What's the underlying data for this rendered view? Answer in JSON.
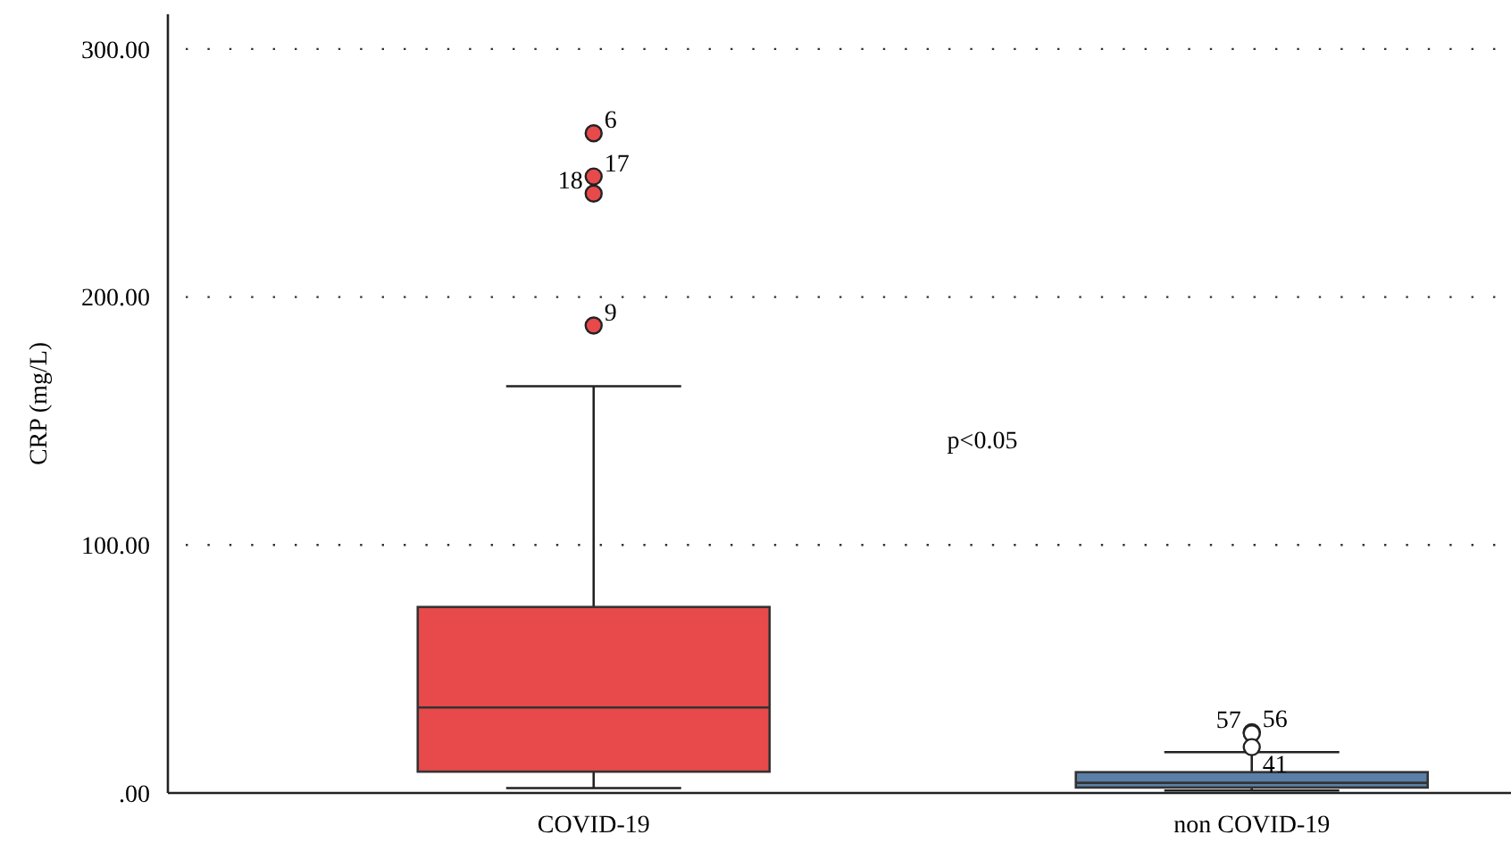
{
  "chart_data": {
    "type": "box",
    "ylabel": "CRP (mg/L)",
    "categories": [
      "COVID-19",
      "non COVID-19"
    ],
    "series": [
      {
        "colors": [
          "#e8494b",
          "#5b7fa6"
        ],
        "boxes": [
          {
            "low": 2,
            "q1": 8.6,
            "median": 34.5,
            "q3": 75,
            "high": 164,
            "outliers": [
              266,
              248.6,
              241.7,
              188.5
            ]
          },
          {
            "low": 1,
            "q1": 2.2,
            "median": 4.1,
            "q3": 8.4,
            "high": 16.5,
            "outliers": [
              24.5,
              24,
              18.5
            ]
          }
        ]
      }
    ],
    "ylim": [
      0,
      314
    ],
    "yticks": [
      {
        "value": 0,
        "label": ".00"
      },
      {
        "value": 100,
        "label": "100.00"
      },
      {
        "value": 200,
        "label": "200.00"
      },
      {
        "value": 300,
        "label": "300.00"
      }
    ],
    "grid": "y",
    "marker": "circle",
    "annotations": [
      "6",
      "17",
      "18",
      "9",
      "56",
      "57",
      "41",
      "p<0.05"
    ]
  }
}
